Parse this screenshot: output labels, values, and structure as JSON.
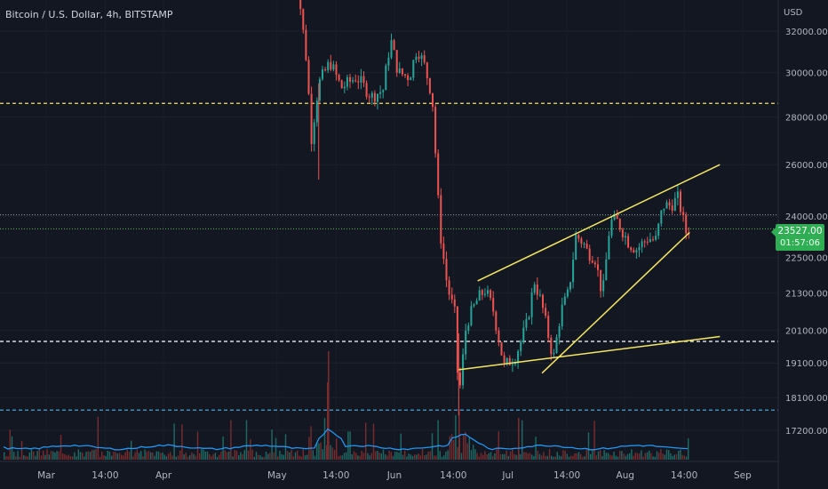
{
  "header": {
    "title": "Bitcoin / U.S. Dollar, 4h, BITSTAMP",
    "currency": "USD"
  },
  "price_tag": {
    "price": "23527.00",
    "countdown": "01:57:06"
  },
  "colors": {
    "background": "#131722",
    "up": "#26a69a",
    "down": "#ef5350",
    "trendline": "#f5e663",
    "resistance": "#f2e25c",
    "support": "#ffffff",
    "current_price": "#4caf50",
    "volume_ma": "#2196f3",
    "axis_text": "#b2b5be"
  },
  "chart_data": {
    "type": "candlestick",
    "y_scale": "log",
    "y_ticks": [
      {
        "value": 32000,
        "label": "32000.00"
      },
      {
        "value": 30000,
        "label": "30000.00"
      },
      {
        "value": 28000,
        "label": "28000.00"
      },
      {
        "value": 26000,
        "label": "26000.00"
      },
      {
        "value": 24000,
        "label": "24000.00"
      },
      {
        "value": 22500,
        "label": "22500.00"
      },
      {
        "value": 21300,
        "label": "21300.00"
      },
      {
        "value": 20100,
        "label": "20100.00"
      },
      {
        "value": 19100,
        "label": "19100.00"
      },
      {
        "value": 18100,
        "label": "18100.00"
      },
      {
        "value": 17200,
        "label": "17200.00"
      }
    ],
    "x_ticks": [
      {
        "date": "2022-03-01",
        "label": "Mar"
      },
      {
        "date": "2022-03-16T14:00",
        "label": "14:00"
      },
      {
        "date": "2022-04-01",
        "label": "Apr"
      },
      {
        "date": "2022-05-01",
        "label": "May"
      },
      {
        "date": "2022-05-16T14:00",
        "label": "14:00"
      },
      {
        "date": "2022-06-01",
        "label": "Jun"
      },
      {
        "date": "2022-06-16T14:00",
        "label": "14:00"
      },
      {
        "date": "2022-07-01",
        "label": "Jul"
      },
      {
        "date": "2022-07-16T14:00",
        "label": "14:00"
      },
      {
        "date": "2022-08-01",
        "label": "Aug"
      },
      {
        "date": "2022-08-16T14:00",
        "label": "14:00"
      },
      {
        "date": "2022-09-01",
        "label": "Sep"
      }
    ],
    "price_path": [
      [
        "2022-05-05",
        38000
      ],
      [
        "2022-05-07",
        33500
      ],
      [
        "2022-05-09",
        30200
      ],
      [
        "2022-05-10",
        27000
      ],
      [
        "2022-05-12",
        29500
      ],
      [
        "2022-05-15",
        30500
      ],
      [
        "2022-05-18",
        29300
      ],
      [
        "2022-05-22",
        29800
      ],
      [
        "2022-05-26",
        28900
      ],
      [
        "2022-05-29",
        29200
      ],
      [
        "2022-05-31",
        31600
      ],
      [
        "2022-06-02",
        30000
      ],
      [
        "2022-06-05",
        29800
      ],
      [
        "2022-06-07",
        31200
      ],
      [
        "2022-06-09",
        30300
      ],
      [
        "2022-06-11",
        28900
      ],
      [
        "2022-06-13",
        23500
      ],
      [
        "2022-06-15",
        21500
      ],
      [
        "2022-06-17",
        20600
      ],
      [
        "2022-06-18",
        18000
      ],
      [
        "2022-06-20",
        20300
      ],
      [
        "2022-06-23",
        21100
      ],
      [
        "2022-06-25",
        21400
      ],
      [
        "2022-06-27",
        20800
      ],
      [
        "2022-06-30",
        19000
      ],
      [
        "2022-07-03",
        19300
      ],
      [
        "2022-07-06",
        20300
      ],
      [
        "2022-07-08",
        21700
      ],
      [
        "2022-07-10",
        20900
      ],
      [
        "2022-07-13",
        19200
      ],
      [
        "2022-07-15",
        20700
      ],
      [
        "2022-07-17",
        21300
      ],
      [
        "2022-07-19",
        23300
      ],
      [
        "2022-07-21",
        23000
      ],
      [
        "2022-07-22",
        22700
      ],
      [
        "2022-07-24",
        22500
      ],
      [
        "2022-07-26",
        21200
      ],
      [
        "2022-07-28",
        23800
      ],
      [
        "2022-07-30",
        23800
      ],
      [
        "2022-08-02",
        23000
      ],
      [
        "2022-08-04",
        22800
      ],
      [
        "2022-08-07",
        23200
      ],
      [
        "2022-08-09",
        23100
      ],
      [
        "2022-08-11",
        24400
      ],
      [
        "2022-08-13",
        24400
      ],
      [
        "2022-08-15",
        24700
      ],
      [
        "2022-08-17",
        23400
      ],
      [
        "2022-08-18",
        23527
      ]
    ],
    "horizontal_lines": [
      {
        "price": 28600,
        "style": "dashed",
        "color": "#f2e25c"
      },
      {
        "price": 19750,
        "style": "dashed",
        "color": "#ffffff"
      },
      {
        "price": 17750,
        "style": "dashed",
        "color": "#4fa3d1"
      },
      {
        "price": 23527,
        "style": "dotted",
        "color": "#4caf50"
      },
      {
        "price": 24050,
        "style": "dotted",
        "color": "#8a8f98"
      }
    ],
    "trendlines": [
      {
        "from": [
          "2022-06-18",
          18900
        ],
        "to": [
          "2022-08-26",
          19900
        ]
      },
      {
        "from": [
          "2022-06-23",
          21700
        ],
        "to": [
          "2022-08-26",
          26000
        ]
      },
      {
        "from": [
          "2022-07-10",
          18800
        ],
        "to": [
          "2022-08-18",
          23400
        ]
      }
    ]
  }
}
